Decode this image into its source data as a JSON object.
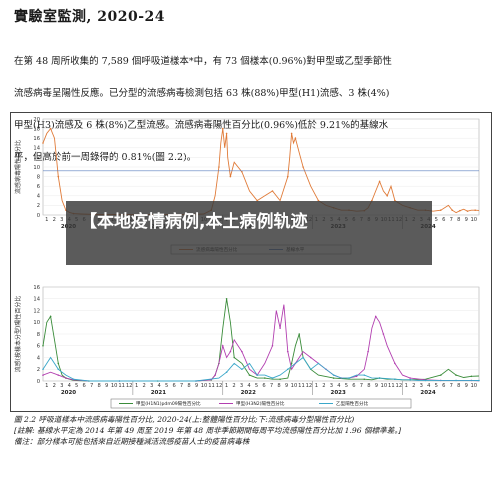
{
  "page": {
    "title": "實驗室監測, 2020-24",
    "paragraph": [
      "在第 48 周所收集的 7,589 個呼吸道樣本*中，有 73 個樣本(0.96%)對甲型或乙型季節性",
      "流感病毒呈陽性反應。已分型的流感病毒檢測包括 63 株(88%)甲型(H1)流感、3 株(4%)",
      "甲型(H3)流感及 6 株(8%)乙型流感。流感病毒陽性百分比(0.96%)低於 9.21%的基線水",
      "平，但高於前一周錄得的 0.81%(圖 2.2)。"
    ],
    "caption_lines": [
      "圖 2.2  呼吸道樣本中流感病毒陽性百分比, 2020-24(上:整體陽性百分比;下:流感病毒分型陽性百分比)",
      "[註解: 基線水平定為 2014 年第 49 周至 2019 年第 48 周非季節期間每周平均流感陽性百分比加 1.96 個標準差。]",
      "備注：部分樣本可能包括來自近期接種減活流感疫苗人士的疫苗病毒株"
    ]
  },
  "overlay": {
    "headline": "【本地疫情病例,本土病例轨迹"
  },
  "chart_data": [
    {
      "type": "line",
      "ylabel": "流感病毒陽性百分比",
      "ylim": [
        0,
        20
      ],
      "yticks": [
        "0",
        "2",
        "4",
        "6",
        "8",
        "10",
        "12",
        "14",
        "16",
        "18",
        "20"
      ],
      "years": [
        "2020",
        "2021",
        "2022",
        "2023",
        "2024"
      ],
      "month_ticks": [
        "1",
        "2",
        "3",
        "4",
        "5",
        "6",
        "7",
        "8",
        "9",
        "10",
        "11",
        "12"
      ],
      "baseline": 9.21,
      "series": [
        {
          "name": "流感病毒陽性百分比",
          "color": "#e07b39",
          "x": [
            0,
            1,
            2,
            3,
            4,
            5,
            6,
            7,
            8,
            10,
            14,
            18,
            22,
            26,
            30,
            34,
            38,
            42,
            44,
            45,
            46,
            46.5,
            47,
            47.5,
            48,
            48.3,
            49,
            50,
            52,
            54,
            56,
            58,
            60,
            62,
            64,
            64.5,
            65,
            65.5,
            66,
            67,
            68,
            70,
            72,
            74,
            76,
            78,
            80,
            82,
            84,
            85,
            86,
            87,
            88,
            89,
            90,
            91,
            92,
            94,
            96,
            98,
            100,
            102,
            104,
            106,
            107,
            108,
            109,
            110,
            111,
            112,
            113,
            114
          ],
          "values": [
            15,
            17,
            18,
            16,
            8,
            3,
            1,
            0.5,
            0.3,
            0.2,
            0.1,
            0.1,
            0.1,
            0.1,
            0.1,
            0.1,
            0.1,
            0.2,
            1,
            4,
            10,
            15,
            18,
            14,
            17,
            12,
            8,
            11,
            9,
            5,
            3,
            4,
            5,
            3,
            8,
            12,
            17,
            15,
            16,
            13,
            10,
            6,
            3,
            2,
            1.5,
            1,
            1,
            0.8,
            0.9,
            1.5,
            3,
            5,
            7,
            5,
            4,
            6,
            3,
            2,
            1.5,
            1,
            1,
            0.8,
            1,
            2,
            1,
            0.5,
            0.9,
            1.2,
            0.8,
            1,
            1,
            0.96
          ]
        },
        {
          "name": "基線水平",
          "color": "#5b7fbf",
          "x": [
            0,
            114
          ],
          "values": [
            9.21,
            9.21
          ]
        }
      ]
    },
    {
      "type": "line",
      "ylabel": "流感(按樣本分型)陽性百分比",
      "ylim": [
        0,
        16
      ],
      "yticks": [
        "0",
        "2",
        "4",
        "6",
        "8",
        "10",
        "12",
        "14",
        "16"
      ],
      "years": [
        "2020",
        "2021",
        "2022",
        "2023",
        "2024"
      ],
      "month_ticks": [
        "1",
        "2",
        "3",
        "4",
        "5",
        "6",
        "7",
        "8",
        "9",
        "10",
        "11",
        "12"
      ],
      "series": [
        {
          "name": "甲型(H1N1)pdm09陽性百分比",
          "color": "#3a8c3a",
          "x": [
            0,
            1,
            2,
            3,
            4,
            5,
            6,
            8,
            12,
            20,
            30,
            40,
            44,
            45,
            46,
            47,
            48,
            49,
            50,
            52,
            54,
            56,
            58,
            60,
            62,
            64,
            65,
            66,
            67,
            68,
            70,
            72,
            76,
            80,
            84,
            86,
            88,
            90,
            92,
            94,
            96,
            100,
            104,
            106,
            108,
            110,
            112,
            114
          ],
          "values": [
            6,
            10,
            11,
            7,
            3,
            1,
            0.5,
            0.1,
            0,
            0,
            0,
            0,
            0.2,
            1,
            3,
            9,
            14,
            10,
            4,
            3,
            1,
            0.5,
            0.5,
            0.3,
            0.3,
            0.5,
            3,
            6,
            8,
            4,
            2,
            1,
            0.5,
            0.3,
            0.3,
            0.2,
            0.5,
            0.3,
            0.3,
            0.2,
            0.2,
            0.3,
            1,
            2,
            1,
            0.6,
            0.8,
            0.85
          ]
        },
        {
          "name": "甲型(H3N2)陽性百分比",
          "color": "#b23fb0",
          "x": [
            0,
            2,
            4,
            6,
            8,
            12,
            20,
            30,
            40,
            44,
            45,
            46,
            47,
            48,
            49,
            50,
            52,
            54,
            56,
            58,
            60,
            61,
            62,
            63,
            64,
            65,
            66,
            68,
            70,
            72,
            74,
            76,
            78,
            80,
            82,
            84,
            85,
            86,
            87,
            88,
            89,
            90,
            92,
            94,
            96,
            100,
            104,
            108,
            112,
            114
          ],
          "values": [
            1,
            1.5,
            1,
            0.5,
            0.2,
            0,
            0,
            0,
            0,
            0.2,
            1,
            3,
            6,
            4,
            5,
            7,
            5,
            2,
            1,
            3,
            6,
            12,
            9,
            13,
            5,
            2,
            3,
            5,
            4,
            3,
            2,
            1,
            0.5,
            0.5,
            0.8,
            2,
            5,
            9,
            11,
            10,
            8,
            6,
            3,
            1,
            0.5,
            0.2,
            0.1,
            0.1,
            0.1,
            0.04
          ]
        },
        {
          "name": "乙型陽性百分比",
          "color": "#3aa7c9",
          "x": [
            0,
            2,
            4,
            6,
            8,
            12,
            20,
            30,
            40,
            46,
            48,
            50,
            52,
            54,
            56,
            58,
            60,
            62,
            64,
            66,
            68,
            70,
            72,
            74,
            76,
            78,
            80,
            82,
            84,
            86,
            88,
            90,
            92,
            94,
            96,
            98,
            100,
            104,
            108,
            112,
            114
          ],
          "values": [
            2,
            4,
            2,
            1,
            0.3,
            0,
            0,
            0,
            0,
            0.5,
            1.5,
            3,
            2,
            3,
            1,
            1,
            0.5,
            1,
            2,
            3,
            4,
            2,
            3,
            2,
            1,
            0.5,
            0.5,
            1,
            1,
            0.5,
            0.5,
            0.4,
            0.3,
            0.2,
            0.2,
            0.1,
            0.1,
            0.1,
            0.1,
            0.1,
            0.08
          ]
        }
      ]
    }
  ]
}
